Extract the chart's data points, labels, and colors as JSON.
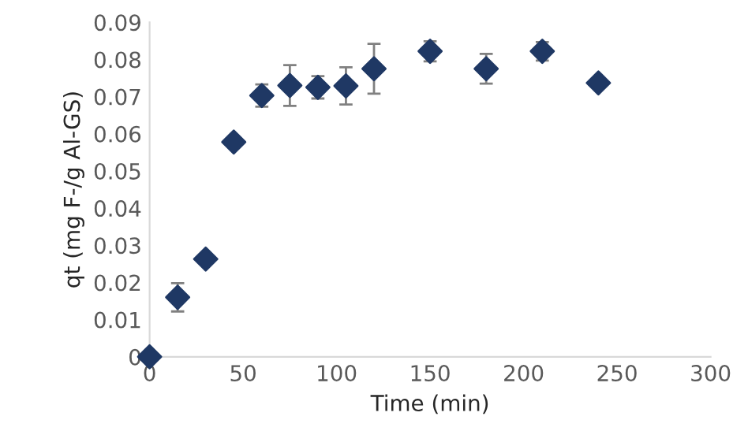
{
  "chart_data": {
    "type": "scatter",
    "xlabel": "Time (min)",
    "ylabel": "qt (mg F-/g Al-GS)",
    "x": [
      0,
      15,
      30,
      45,
      60,
      75,
      90,
      105,
      120,
      150,
      180,
      210,
      240
    ],
    "series": [
      {
        "color": "#1f3864",
        "values": [
          0,
          0.016,
          0.0263,
          0.0578,
          0.0703,
          0.073,
          0.0725,
          0.0729,
          0.0775,
          0.0822,
          0.0775,
          0.0822,
          0.0737
        ],
        "errors": [
          null,
          0.0038,
          null,
          null,
          0.003,
          0.0055,
          0.003,
          0.005,
          0.0067,
          0.0027,
          0.004,
          0.0025,
          null
        ]
      }
    ],
    "xlim": [
      0,
      300
    ],
    "xticks": [
      0,
      50,
      100,
      150,
      200,
      250,
      300
    ],
    "ylim": [
      0,
      0.09
    ],
    "yticks": [
      0,
      0.01,
      0.02,
      0.03,
      0.04,
      0.05,
      0.06,
      0.07,
      0.08,
      0.09
    ],
    "marker": "diamond",
    "grid": false
  }
}
